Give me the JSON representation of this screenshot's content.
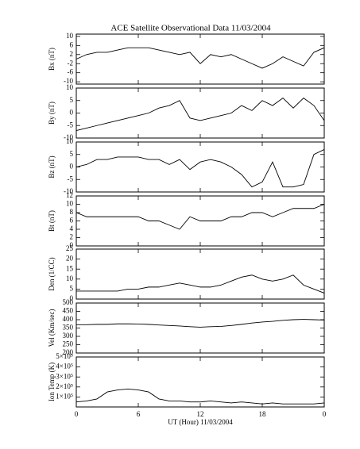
{
  "chart_data": [
    {
      "type": "line",
      "title": "ACE Satellite Observational Data   11/03/2004",
      "ylabel": "Bx (nT)",
      "x": [
        0,
        1,
        2,
        3,
        4,
        5,
        6,
        7,
        8,
        9,
        10,
        11,
        12,
        13,
        14,
        15,
        16,
        17,
        18,
        19,
        20,
        21,
        22,
        23,
        24
      ],
      "series": [
        {
          "color": "#000000",
          "values": [
            0,
            2,
            3,
            3,
            4,
            5,
            5,
            5,
            4,
            3,
            2,
            3,
            -2,
            2,
            1,
            2,
            0,
            -2,
            -4,
            -2,
            1,
            -1,
            -3,
            3,
            5
          ]
        }
      ],
      "ylim": [
        -11,
        11
      ],
      "yticks": [
        -10,
        -6,
        -2,
        2,
        6,
        10
      ]
    },
    {
      "type": "line",
      "ylabel": "By (nT)",
      "x": [
        0,
        1,
        2,
        3,
        4,
        5,
        6,
        7,
        8,
        9,
        10,
        11,
        12,
        13,
        14,
        15,
        16,
        17,
        18,
        19,
        20,
        21,
        22,
        23,
        24
      ],
      "series": [
        {
          "color": "#000000",
          "values": [
            -7,
            -6,
            -5,
            -4,
            -3,
            -2,
            -1,
            0,
            2,
            3,
            5,
            -2,
            -3,
            -2,
            -1,
            0,
            3,
            1,
            5,
            3,
            6,
            2,
            6,
            3,
            -3
          ]
        }
      ],
      "ylim": [
        -10,
        10
      ],
      "yticks": [
        -10,
        -5,
        0,
        5,
        10
      ]
    },
    {
      "type": "line",
      "ylabel": "Bz (nT)",
      "x": [
        0,
        1,
        2,
        3,
        4,
        5,
        6,
        7,
        8,
        9,
        10,
        11,
        12,
        13,
        14,
        15,
        16,
        17,
        18,
        19,
        20,
        21,
        22,
        23,
        24
      ],
      "series": [
        {
          "color": "#000000",
          "values": [
            0,
            1,
            3,
            3,
            4,
            4,
            4,
            3,
            3,
            1,
            3,
            -1,
            2,
            3,
            2,
            0,
            -3,
            -8,
            -6,
            2,
            -8,
            -8,
            -7,
            5,
            7
          ]
        }
      ],
      "ylim": [
        -10,
        10
      ],
      "yticks": [
        -10,
        -5,
        0,
        5,
        10
      ]
    },
    {
      "type": "line",
      "ylabel": "Bt (nT)",
      "x": [
        0,
        1,
        2,
        3,
        4,
        5,
        6,
        7,
        8,
        9,
        10,
        11,
        12,
        13,
        14,
        15,
        16,
        17,
        18,
        19,
        20,
        21,
        22,
        23,
        24
      ],
      "series": [
        {
          "color": "#000000",
          "values": [
            8,
            7,
            7,
            7,
            7,
            7,
            7,
            6,
            6,
            5,
            4,
            7,
            6,
            6,
            6,
            7,
            7,
            8,
            8,
            7,
            8,
            9,
            9,
            9,
            10
          ]
        }
      ],
      "ylim": [
        0,
        12
      ],
      "yticks": [
        0,
        2,
        4,
        6,
        8,
        10,
        12
      ]
    },
    {
      "type": "line",
      "ylabel": "Den (1/CC)",
      "x": [
        0,
        1,
        2,
        3,
        4,
        5,
        6,
        7,
        8,
        9,
        10,
        11,
        12,
        13,
        14,
        15,
        16,
        17,
        18,
        19,
        20,
        21,
        22,
        23,
        24
      ],
      "series": [
        {
          "color": "#000000",
          "values": [
            4,
            4,
            4,
            4,
            4,
            5,
            5,
            6,
            6,
            7,
            8,
            7,
            6,
            6,
            7,
            9,
            11,
            12,
            10,
            9,
            10,
            12,
            7,
            5,
            3
          ]
        }
      ],
      "ylim": [
        0,
        25
      ],
      "yticks": [
        0,
        5,
        10,
        15,
        20,
        25
      ]
    },
    {
      "type": "line",
      "ylabel": "Vel (Km/sec)",
      "x": [
        0,
        1,
        2,
        3,
        4,
        5,
        6,
        7,
        8,
        9,
        10,
        11,
        12,
        13,
        14,
        15,
        16,
        17,
        18,
        19,
        20,
        21,
        22,
        23,
        24
      ],
      "series": [
        {
          "color": "#000000",
          "values": [
            370,
            370,
            372,
            372,
            375,
            375,
            374,
            372,
            368,
            365,
            362,
            358,
            355,
            358,
            360,
            365,
            372,
            380,
            386,
            390,
            396,
            400,
            402,
            400,
            398
          ]
        }
      ],
      "ylim": [
        200,
        500
      ],
      "yticks": [
        200,
        250,
        300,
        350,
        400,
        450,
        500
      ]
    },
    {
      "type": "line",
      "ylabel": "Ion Temp (K)",
      "xlabel": "UT (Hour)   11/03/2004",
      "x": [
        0,
        1,
        2,
        3,
        4,
        5,
        6,
        7,
        8,
        9,
        10,
        11,
        12,
        13,
        14,
        15,
        16,
        17,
        18,
        19,
        20,
        21,
        22,
        23,
        24
      ],
      "series": [
        {
          "color": "#000000",
          "values": [
            50000,
            60000,
            80000,
            150000,
            170000,
            180000,
            170000,
            150000,
            80000,
            60000,
            60000,
            50000,
            50000,
            60000,
            50000,
            40000,
            50000,
            40000,
            30000,
            40000,
            30000,
            30000,
            30000,
            30000,
            40000
          ]
        }
      ],
      "ylim": [
        0,
        500000
      ],
      "yticks": [
        {
          "value": 100000,
          "label": "1×10⁵"
        },
        {
          "value": 200000,
          "label": "2×10⁵"
        },
        {
          "value": 300000,
          "label": "3×10⁵"
        },
        {
          "value": 400000,
          "label": "4×10⁵"
        },
        {
          "value": 500000,
          "label": "5×10⁵"
        }
      ],
      "xlim": [
        0,
        24
      ],
      "xticks": [
        0,
        6,
        12,
        {
          "value": 18,
          "label": "18"
        },
        {
          "value": 24,
          "label": "0"
        }
      ]
    }
  ]
}
